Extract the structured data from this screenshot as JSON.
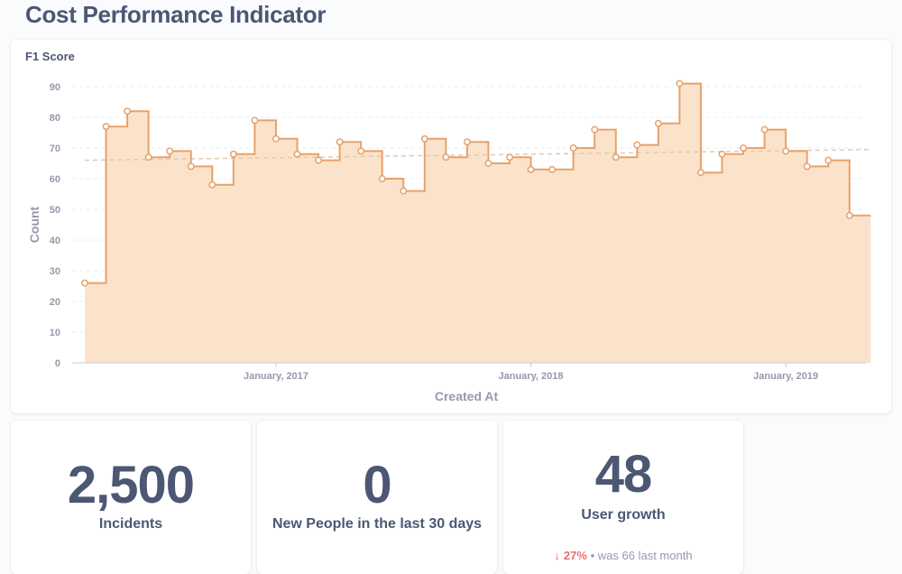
{
  "page": {
    "title": "Cost Performance Indicator"
  },
  "chart_card": {
    "title": "F1 Score"
  },
  "chart_data": {
    "type": "area",
    "interpolation": "step",
    "xlabel": "Created At",
    "ylabel": "Count",
    "ylim": [
      0,
      90
    ],
    "y_ticks": [
      0,
      10,
      20,
      30,
      40,
      50,
      60,
      70,
      80,
      90
    ],
    "x_ticks": [
      "January, 2017",
      "January, 2018",
      "January, 2019"
    ],
    "x": [
      "2016-04",
      "2016-05",
      "2016-06",
      "2016-07",
      "2016-08",
      "2016-09",
      "2016-10",
      "2016-11",
      "2016-12",
      "2017-01",
      "2017-02",
      "2017-03",
      "2017-04",
      "2017-05",
      "2017-06",
      "2017-07",
      "2017-08",
      "2017-09",
      "2017-10",
      "2017-11",
      "2017-12",
      "2018-01",
      "2018-02",
      "2018-03",
      "2018-04",
      "2018-05",
      "2018-06",
      "2018-07",
      "2018-08",
      "2018-09",
      "2018-10",
      "2018-11",
      "2018-12",
      "2019-01",
      "2019-02",
      "2019-03",
      "2019-04",
      "2019-05"
    ],
    "values": [
      26,
      77,
      82,
      67,
      69,
      64,
      58,
      68,
      79,
      73,
      68,
      66,
      72,
      69,
      60,
      56,
      73,
      67,
      72,
      65,
      67,
      63,
      63,
      70,
      76,
      67,
      71,
      78,
      91,
      62,
      68,
      70,
      76,
      69,
      64,
      66,
      48,
      48
    ],
    "trendline": {
      "start": 66,
      "end": 69.5
    },
    "grid": true,
    "colors": {
      "line": "#e6a26b",
      "fill": "#fbe3cb",
      "trend": "#e3c9b0",
      "grid": "#e8ebef"
    }
  },
  "scalars": [
    {
      "value": "2,500",
      "label": "Incidents"
    },
    {
      "value": "0",
      "label": "New People in the last 30 days"
    },
    {
      "value": "48",
      "label": "User growth",
      "trend": {
        "arrow": "↓",
        "change": "27%",
        "separator": "•",
        "was_text": "was 66",
        "period": "last month"
      }
    }
  ]
}
